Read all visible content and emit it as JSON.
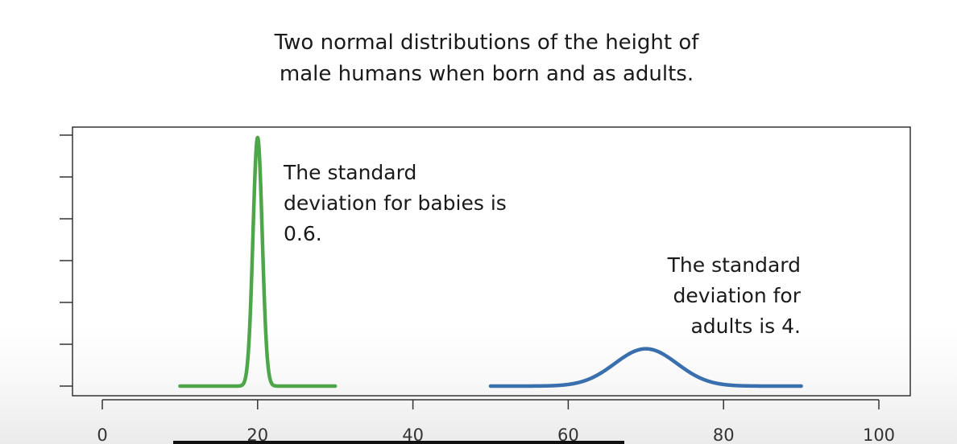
{
  "chart_data": {
    "type": "line",
    "title_lines": [
      "Two normal distributions of the height of",
      "male humans when born and as adults."
    ],
    "xlabel": "",
    "ylabel": "",
    "xlim": [
      0,
      100
    ],
    "x_ticks": [
      0,
      20,
      40,
      60,
      80,
      100
    ],
    "grid": false,
    "series": [
      {
        "mean": 20,
        "sd": 0.6,
        "x_range": [
          10,
          30
        ],
        "color": "#4ea64a"
      },
      {
        "mean": 70,
        "sd": 4,
        "x_range": [
          50,
          90
        ],
        "color": "#3a6fae"
      }
    ],
    "annotations": [
      {
        "lines": [
          "The standard",
          "deviation for babies is",
          "0.6."
        ]
      },
      {
        "lines": [
          "The standard",
          "deviation for",
          "adults is 4."
        ]
      }
    ]
  }
}
